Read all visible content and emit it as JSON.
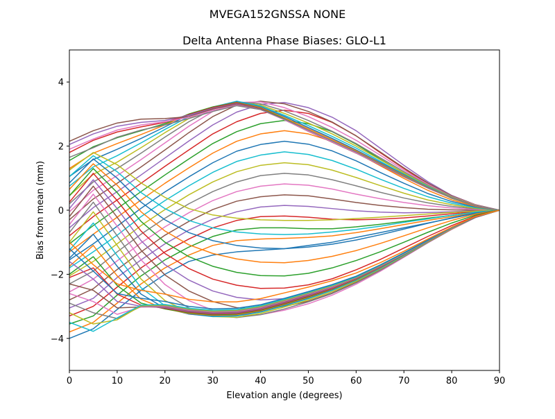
{
  "figure": {
    "suptitle": "MVEGA152GNSSA   NONE"
  },
  "chart_data": {
    "type": "line",
    "title": "Delta Antenna Phase Biases: GLO-L1",
    "xlabel": "Elevation angle (degrees)",
    "ylabel": "Bias from mean (mm)",
    "xlim": [
      0,
      90
    ],
    "ylim": [
      -5,
      5
    ],
    "xticks": [
      0,
      10,
      20,
      30,
      40,
      50,
      60,
      70,
      80,
      90
    ],
    "yticks": [
      -4,
      -2,
      0,
      2,
      4
    ],
    "grid": false,
    "legend": "none",
    "x": [
      0,
      5,
      10,
      15,
      20,
      25,
      30,
      35,
      40,
      45,
      50,
      55,
      60,
      65,
      70,
      75,
      80,
      85,
      90
    ],
    "colors": [
      "#1f77b4",
      "#ff7f0e",
      "#2ca02c",
      "#d62728",
      "#9467bd",
      "#8c564b",
      "#e377c2",
      "#7f7f7f",
      "#bcbd22",
      "#17becf"
    ],
    "series": [
      {
        "values": [
          -4.0,
          -3.7,
          -3.1,
          -2.5,
          -2.0,
          -1.6,
          -1.4,
          -1.3,
          -1.25,
          -1.2,
          -1.1,
          -1.0,
          -0.85,
          -0.7,
          -0.55,
          -0.4,
          -0.25,
          -0.1,
          0
        ]
      },
      {
        "values": [
          -3.8,
          -3.5,
          -2.9,
          -2.3,
          -1.8,
          -1.4,
          -1.1,
          -0.95,
          -0.9,
          -0.88,
          -0.85,
          -0.8,
          -0.7,
          -0.58,
          -0.45,
          -0.32,
          -0.2,
          -0.08,
          0
        ]
      },
      {
        "values": [
          -3.55,
          -3.3,
          -2.65,
          -2.05,
          -1.55,
          -1.15,
          -0.82,
          -0.62,
          -0.55,
          -0.55,
          -0.58,
          -0.58,
          -0.52,
          -0.44,
          -0.35,
          -0.25,
          -0.16,
          -0.06,
          0
        ]
      },
      {
        "values": [
          -3.3,
          -3.0,
          -2.4,
          -1.8,
          -1.3,
          -0.9,
          -0.55,
          -0.32,
          -0.2,
          -0.18,
          -0.22,
          -0.28,
          -0.3,
          -0.28,
          -0.24,
          -0.18,
          -0.11,
          -0.04,
          0
        ]
      },
      {
        "values": [
          -3.05,
          -2.75,
          -2.1,
          -1.55,
          -1.05,
          -0.62,
          -0.28,
          -0.05,
          0.1,
          0.15,
          0.12,
          0.05,
          -0.02,
          -0.06,
          -0.08,
          -0.07,
          -0.05,
          -0.02,
          0
        ]
      },
      {
        "values": [
          -2.8,
          -2.45,
          -1.85,
          -1.3,
          -0.78,
          -0.35,
          0.02,
          0.28,
          0.42,
          0.48,
          0.45,
          0.35,
          0.24,
          0.15,
          0.08,
          0.03,
          0.01,
          0.0,
          0
        ]
      },
      {
        "values": [
          -2.55,
          -2.15,
          -1.58,
          -1.02,
          -0.52,
          -0.08,
          0.3,
          0.58,
          0.75,
          0.82,
          0.78,
          0.66,
          0.5,
          0.36,
          0.24,
          0.14,
          0.07,
          0.02,
          0
        ]
      },
      {
        "values": [
          -2.3,
          -1.9,
          -1.3,
          -0.75,
          -0.25,
          0.2,
          0.58,
          0.88,
          1.08,
          1.15,
          1.1,
          0.95,
          0.76,
          0.56,
          0.38,
          0.23,
          0.12,
          0.04,
          0
        ]
      },
      {
        "values": [
          -2.05,
          -1.6,
          -1.05,
          -0.48,
          0.02,
          0.48,
          0.88,
          1.2,
          1.4,
          1.48,
          1.42,
          1.25,
          1.02,
          0.77,
          0.53,
          0.32,
          0.17,
          0.06,
          0
        ]
      },
      {
        "values": [
          -1.8,
          -1.3,
          -0.78,
          -0.2,
          0.3,
          0.76,
          1.18,
          1.52,
          1.72,
          1.82,
          1.74,
          1.55,
          1.28,
          0.97,
          0.68,
          0.42,
          0.22,
          0.08,
          0
        ]
      },
      {
        "values": [
          -1.55,
          -1.05,
          -0.5,
          0.06,
          0.57,
          1.04,
          1.48,
          1.84,
          2.05,
          2.15,
          2.06,
          1.85,
          1.54,
          1.18,
          0.84,
          0.52,
          0.27,
          0.1,
          0
        ]
      },
      {
        "values": [
          -1.3,
          -0.75,
          -0.22,
          0.32,
          0.84,
          1.32,
          1.78,
          2.15,
          2.38,
          2.48,
          2.38,
          2.15,
          1.8,
          1.39,
          0.99,
          0.62,
          0.32,
          0.12,
          0
        ]
      },
      {
        "values": [
          -1.05,
          -0.48,
          0.05,
          0.58,
          1.1,
          1.6,
          2.08,
          2.45,
          2.7,
          2.8,
          2.7,
          2.45,
          2.06,
          1.6,
          1.15,
          0.72,
          0.37,
          0.14,
          0
        ]
      },
      {
        "values": [
          -0.8,
          -0.2,
          0.32,
          0.84,
          1.37,
          1.88,
          2.38,
          2.76,
          3.02,
          3.12,
          3.02,
          2.74,
          2.32,
          1.8,
          1.3,
          0.82,
          0.42,
          0.16,
          0
        ]
      },
      {
        "values": [
          -0.55,
          0.08,
          0.58,
          1.1,
          1.63,
          2.16,
          2.66,
          3.06,
          3.3,
          3.36,
          3.2,
          2.9,
          2.48,
          1.94,
          1.4,
          0.89,
          0.46,
          0.17,
          0
        ]
      },
      {
        "values": [
          -0.3,
          0.35,
          0.84,
          1.35,
          1.88,
          2.42,
          2.92,
          3.28,
          3.4,
          3.32,
          3.08,
          2.75,
          2.32,
          1.82,
          1.32,
          0.85,
          0.45,
          0.17,
          0
        ]
      },
      {
        "values": [
          -0.05,
          0.62,
          1.08,
          1.58,
          2.1,
          2.62,
          3.08,
          3.36,
          3.38,
          3.2,
          2.92,
          2.58,
          2.18,
          1.72,
          1.25,
          0.81,
          0.43,
          0.16,
          0
        ]
      },
      {
        "values": [
          0.2,
          0.88,
          1.3,
          1.78,
          2.28,
          2.76,
          3.15,
          3.38,
          3.32,
          3.1,
          2.8,
          2.46,
          2.08,
          1.64,
          1.2,
          0.78,
          0.42,
          0.15,
          0
        ]
      },
      {
        "values": [
          0.45,
          1.12,
          1.5,
          1.95,
          2.42,
          2.86,
          3.2,
          3.38,
          3.28,
          3.02,
          2.72,
          2.38,
          2.0,
          1.58,
          1.16,
          0.76,
          0.41,
          0.15,
          0
        ]
      },
      {
        "values": [
          0.75,
          1.35,
          1.7,
          2.1,
          2.52,
          2.92,
          3.22,
          3.4,
          3.25,
          2.96,
          2.64,
          2.3,
          1.94,
          1.53,
          1.12,
          0.74,
          0.4,
          0.14,
          0
        ]
      },
      {
        "values": [
          1.05,
          1.58,
          1.9,
          2.24,
          2.6,
          2.98,
          3.22,
          3.38,
          3.22,
          2.92,
          2.58,
          2.24,
          1.88,
          1.49,
          1.1,
          0.72,
          0.39,
          0.14,
          0
        ]
      },
      {
        "values": [
          1.3,
          1.78,
          2.08,
          2.36,
          2.66,
          3.0,
          3.22,
          3.36,
          3.2,
          2.88,
          2.54,
          2.2,
          1.85,
          1.46,
          1.08,
          0.71,
          0.39,
          0.14,
          0
        ]
      },
      {
        "values": [
          1.55,
          1.98,
          2.26,
          2.48,
          2.7,
          3.0,
          3.22,
          3.35,
          3.18,
          2.85,
          2.5,
          2.16,
          1.82,
          1.44,
          1.06,
          0.7,
          0.38,
          0.14,
          0
        ]
      },
      {
        "values": [
          1.8,
          2.18,
          2.44,
          2.6,
          2.74,
          2.98,
          3.2,
          3.34,
          3.17,
          2.83,
          2.48,
          2.14,
          1.8,
          1.43,
          1.05,
          0.7,
          0.38,
          0.14,
          0
        ]
      },
      {
        "values": [
          2.05,
          2.38,
          2.62,
          2.74,
          2.8,
          2.96,
          3.18,
          3.32,
          3.16,
          2.82,
          2.47,
          2.13,
          1.79,
          1.42,
          1.05,
          0.69,
          0.38,
          0.14,
          0
        ]
      },
      {
        "values": [
          2.15,
          2.48,
          2.72,
          2.84,
          2.86,
          2.92,
          3.16,
          3.3,
          3.15,
          2.82,
          2.46,
          2.12,
          1.78,
          1.41,
          1.04,
          0.69,
          0.38,
          0.14,
          0
        ]
      },
      {
        "values": [
          1.9,
          2.22,
          2.5,
          2.66,
          2.76,
          2.9,
          3.12,
          3.28,
          3.14,
          2.82,
          2.47,
          2.13,
          1.79,
          1.42,
          1.05,
          0.69,
          0.38,
          0.14,
          0
        ]
      },
      {
        "values": [
          1.65,
          1.95,
          2.28,
          2.5,
          2.66,
          2.86,
          3.08,
          3.26,
          3.14,
          2.84,
          2.5,
          2.16,
          1.82,
          1.44,
          1.06,
          0.7,
          0.38,
          0.14,
          0
        ]
      },
      {
        "values": [
          1.25,
          1.8,
          1.42,
          0.85,
          0.4,
          0.05,
          -0.15,
          -0.25,
          -0.3,
          -0.32,
          -0.32,
          -0.3,
          -0.26,
          -0.22,
          -0.17,
          -0.12,
          -0.07,
          -0.03,
          0
        ]
      },
      {
        "values": [
          1.05,
          1.7,
          1.2,
          0.55,
          0.05,
          -0.32,
          -0.55,
          -0.68,
          -0.74,
          -0.76,
          -0.74,
          -0.68,
          -0.6,
          -0.5,
          -0.38,
          -0.27,
          -0.16,
          -0.06,
          0
        ]
      },
      {
        "values": [
          0.85,
          1.6,
          1.0,
          0.25,
          -0.3,
          -0.7,
          -0.95,
          -1.1,
          -1.18,
          -1.2,
          -1.15,
          -1.06,
          -0.93,
          -0.77,
          -0.59,
          -0.41,
          -0.24,
          -0.09,
          0
        ]
      },
      {
        "values": [
          0.65,
          1.45,
          0.78,
          -0.05,
          -0.65,
          -1.08,
          -1.35,
          -1.52,
          -1.62,
          -1.64,
          -1.57,
          -1.44,
          -1.26,
          -1.04,
          -0.8,
          -0.55,
          -0.32,
          -0.12,
          0
        ]
      },
      {
        "values": [
          0.45,
          1.3,
          0.55,
          -0.35,
          -1.0,
          -1.45,
          -1.75,
          -1.94,
          -2.04,
          -2.05,
          -1.97,
          -1.8,
          -1.57,
          -1.3,
          -1.0,
          -0.69,
          -0.4,
          -0.15,
          0
        ]
      },
      {
        "values": [
          0.25,
          1.15,
          0.3,
          -0.65,
          -1.35,
          -1.82,
          -2.15,
          -2.34,
          -2.44,
          -2.43,
          -2.33,
          -2.14,
          -1.86,
          -1.54,
          -1.18,
          -0.82,
          -0.48,
          -0.18,
          0
        ]
      },
      {
        "values": [
          0.05,
          0.95,
          0.05,
          -0.95,
          -1.7,
          -2.18,
          -2.52,
          -2.72,
          -2.8,
          -2.76,
          -2.62,
          -2.4,
          -2.1,
          -1.74,
          -1.34,
          -0.93,
          -0.54,
          -0.2,
          0
        ]
      },
      {
        "values": [
          -0.2,
          0.75,
          -0.22,
          -1.25,
          -2.02,
          -2.52,
          -2.85,
          -3.04,
          -3.08,
          -3.0,
          -2.84,
          -2.58,
          -2.25,
          -1.86,
          -1.43,
          -0.99,
          -0.58,
          -0.22,
          0
        ]
      },
      {
        "values": [
          -0.45,
          0.5,
          -0.5,
          -1.55,
          -2.32,
          -2.82,
          -3.12,
          -3.28,
          -3.26,
          -3.12,
          -2.92,
          -2.65,
          -2.31,
          -1.91,
          -1.47,
          -1.02,
          -0.6,
          -0.23,
          0
        ]
      },
      {
        "values": [
          -0.7,
          0.25,
          -0.8,
          -1.85,
          -2.6,
          -3.05,
          -3.28,
          -3.35,
          -3.26,
          -3.08,
          -2.86,
          -2.6,
          -2.27,
          -1.88,
          -1.45,
          -1.01,
          -0.59,
          -0.22,
          0
        ]
      },
      {
        "values": [
          -1.0,
          -0.05,
          -1.1,
          -2.15,
          -2.82,
          -3.18,
          -3.32,
          -3.34,
          -3.22,
          -3.02,
          -2.8,
          -2.54,
          -2.22,
          -1.84,
          -1.42,
          -0.99,
          -0.58,
          -0.22,
          0
        ]
      },
      {
        "values": [
          -1.25,
          -0.4,
          -1.42,
          -2.42,
          -2.98,
          -3.24,
          -3.32,
          -3.3,
          -3.18,
          -2.98,
          -2.76,
          -2.5,
          -2.19,
          -1.82,
          -1.4,
          -0.98,
          -0.57,
          -0.22,
          0
        ]
      },
      {
        "values": [
          -1.5,
          -0.75,
          -1.75,
          -2.62,
          -3.06,
          -3.24,
          -3.3,
          -3.28,
          -3.16,
          -2.96,
          -2.74,
          -2.48,
          -2.17,
          -1.8,
          -1.39,
          -0.97,
          -0.57,
          -0.22,
          0
        ]
      },
      {
        "values": [
          -1.75,
          -1.1,
          -2.05,
          -2.78,
          -3.08,
          -3.22,
          -3.28,
          -3.26,
          -3.14,
          -2.94,
          -2.72,
          -2.46,
          -2.16,
          -1.79,
          -1.38,
          -0.97,
          -0.57,
          -0.22,
          0
        ]
      },
      {
        "values": [
          -2.0,
          -1.45,
          -2.35,
          -2.9,
          -3.08,
          -3.2,
          -3.26,
          -3.24,
          -3.12,
          -2.92,
          -2.7,
          -2.45,
          -2.15,
          -1.78,
          -1.38,
          -0.96,
          -0.56,
          -0.22,
          0
        ]
      },
      {
        "values": [
          -2.1,
          -1.8,
          -2.62,
          -2.96,
          -3.06,
          -3.18,
          -3.24,
          -3.22,
          -3.1,
          -2.9,
          -2.68,
          -2.44,
          -2.14,
          -1.78,
          -1.37,
          -0.96,
          -0.56,
          -0.22,
          0
        ]
      },
      {
        "values": [
          -1.6,
          -2.15,
          -2.85,
          -3.0,
          -3.04,
          -3.16,
          -3.22,
          -3.2,
          -3.08,
          -2.88,
          -2.66,
          -2.42,
          -2.13,
          -1.77,
          -1.37,
          -0.96,
          -0.56,
          -0.22,
          0
        ]
      },
      {
        "values": [
          -2.3,
          -2.5,
          -3.05,
          -3.02,
          -3.02,
          -3.14,
          -3.2,
          -3.18,
          -3.06,
          -2.86,
          -2.64,
          -2.4,
          -2.12,
          -1.76,
          -1.36,
          -0.95,
          -0.56,
          -0.22,
          0
        ]
      },
      {
        "values": [
          -2.6,
          -2.85,
          -3.25,
          -3.02,
          -3.0,
          -3.12,
          -3.18,
          -3.16,
          -3.04,
          -2.84,
          -2.62,
          -2.39,
          -2.11,
          -1.75,
          -1.36,
          -0.95,
          -0.56,
          -0.21,
          0
        ]
      },
      {
        "values": [
          -2.9,
          -3.2,
          -3.38,
          -3.0,
          -2.98,
          -3.1,
          -3.16,
          -3.14,
          -3.02,
          -2.82,
          -2.6,
          -2.37,
          -2.1,
          -1.74,
          -1.35,
          -0.95,
          -0.55,
          -0.21,
          0
        ]
      },
      {
        "values": [
          -3.2,
          -3.55,
          -3.42,
          -2.98,
          -2.96,
          -3.08,
          -3.14,
          -3.12,
          -3.0,
          -2.8,
          -2.58,
          -2.36,
          -2.09,
          -1.73,
          -1.35,
          -0.94,
          -0.55,
          -0.21,
          0
        ]
      },
      {
        "values": [
          -3.5,
          -3.78,
          -3.36,
          -2.96,
          -2.94,
          -3.06,
          -3.12,
          -3.1,
          -2.98,
          -2.78,
          -2.56,
          -2.34,
          -2.08,
          -1.72,
          -1.34,
          -0.94,
          -0.55,
          -0.21,
          0
        ]
      },
      {
        "values": [
          -1.2,
          -1.9,
          -2.6,
          -2.75,
          -2.85,
          -3.0,
          -3.08,
          -3.06,
          -2.95,
          -2.75,
          -2.54,
          -2.32,
          -2.06,
          -1.71,
          -1.33,
          -0.93,
          -0.54,
          -0.21,
          0
        ]
      },
      {
        "values": [
          -1.0,
          -1.7,
          -2.3,
          -2.5,
          -2.62,
          -2.78,
          -2.86,
          -2.86,
          -2.76,
          -2.58,
          -2.4,
          -2.2,
          -1.96,
          -1.64,
          -1.28,
          -0.9,
          -0.53,
          -0.2,
          0
        ]
      }
    ]
  }
}
